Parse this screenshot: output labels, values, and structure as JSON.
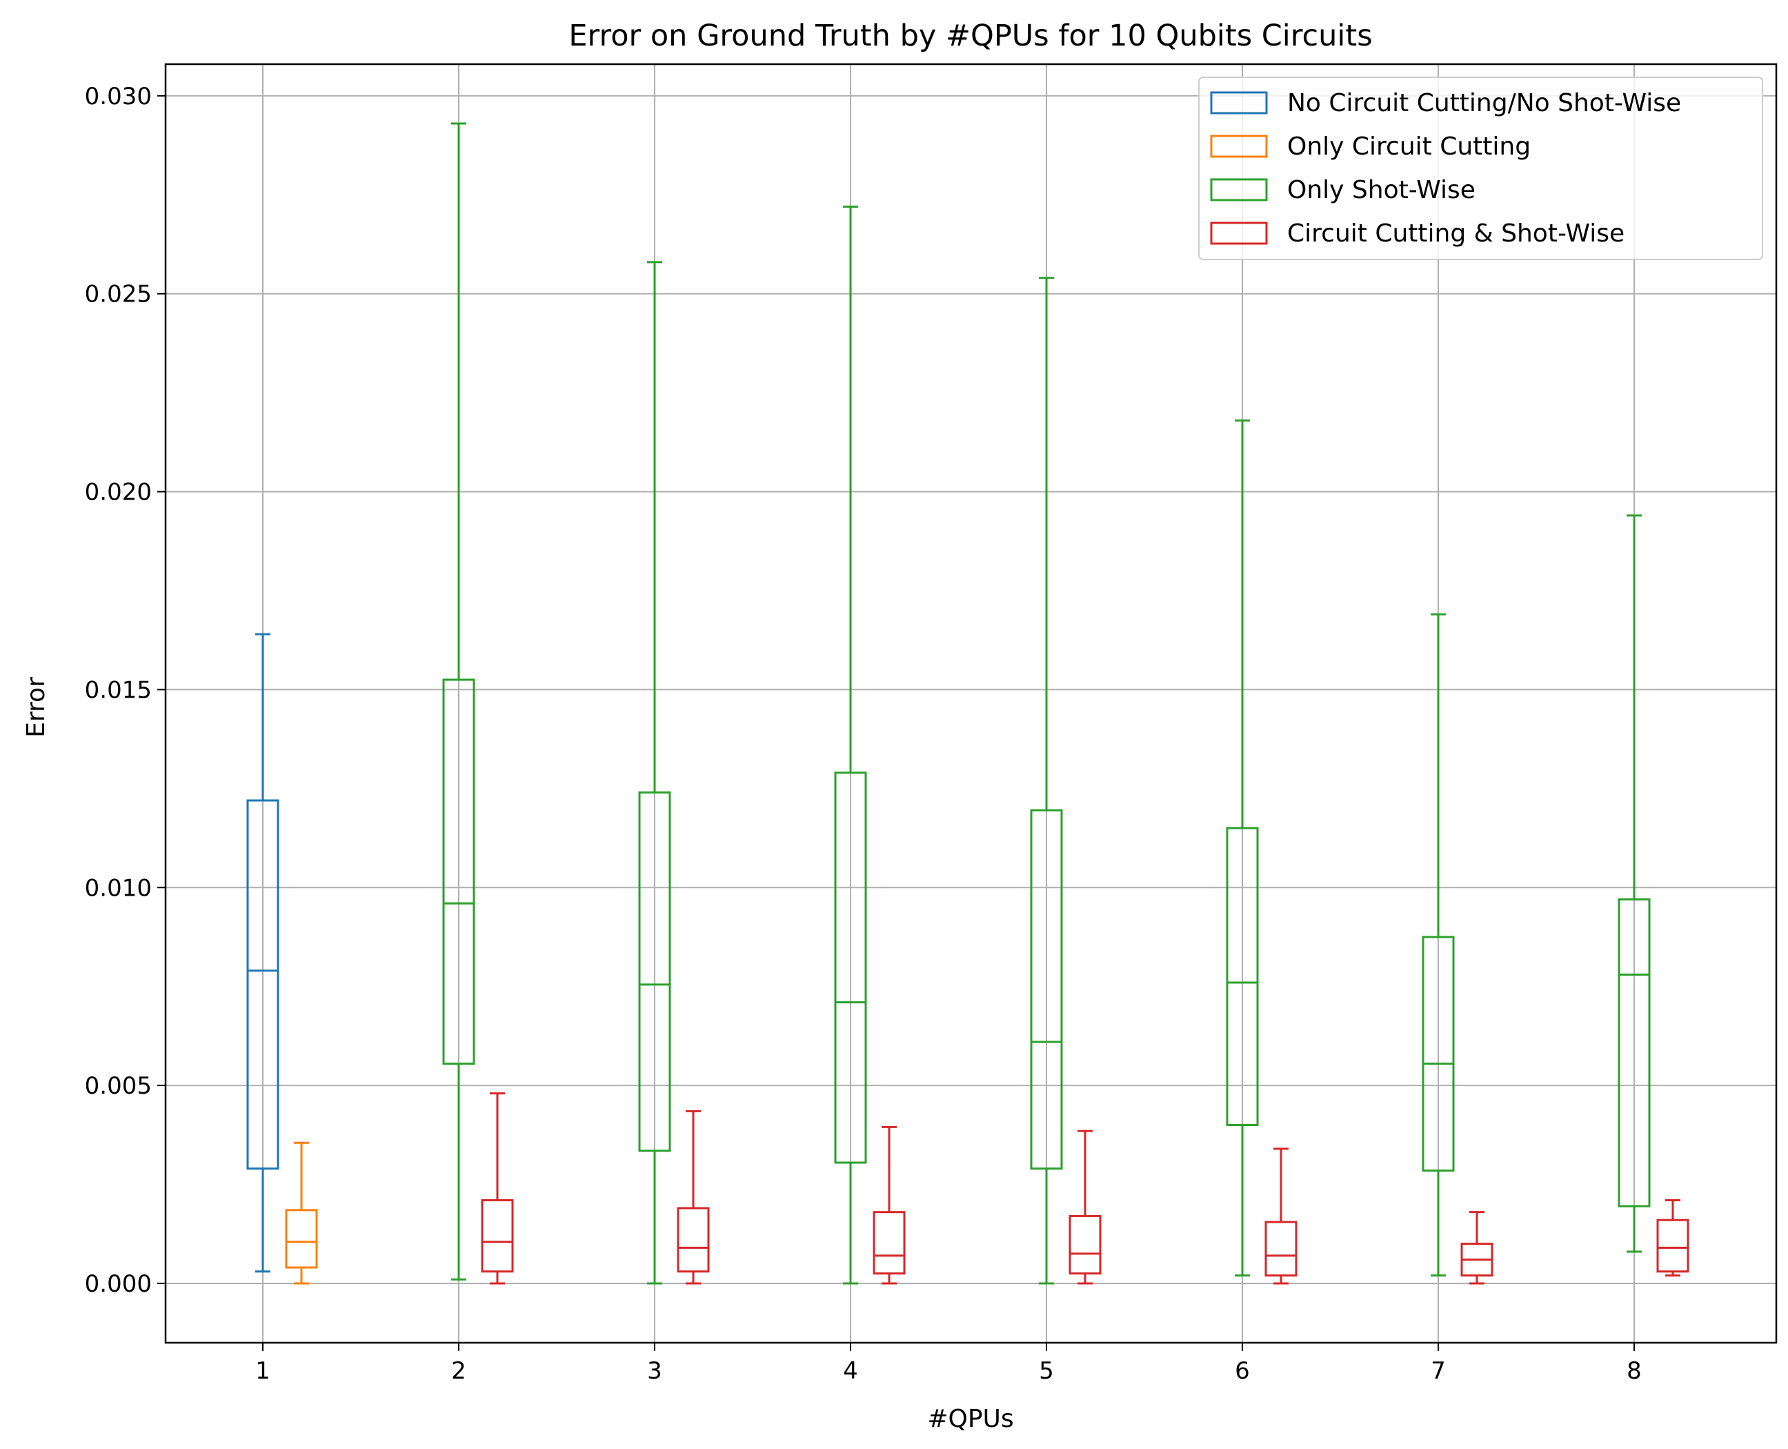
{
  "chart_data": {
    "type": "box",
    "title": "Error on Ground Truth by #QPUs for 10 Qubits Circuits",
    "xlabel": "#QPUs",
    "ylabel": "Error",
    "ylim": [
      -0.0015,
      0.0308
    ],
    "yticks": [
      "0.000",
      "0.005",
      "0.010",
      "0.015",
      "0.020",
      "0.025",
      "0.030"
    ],
    "categories": [
      "1",
      "2",
      "3",
      "4",
      "5",
      "6",
      "7",
      "8"
    ],
    "grid": true,
    "legend_position": "top-right",
    "series": [
      {
        "name": "No Circuit Cutting/No Shot-Wise",
        "color": "#1f77b4",
        "boxes": [
          {
            "category": "1",
            "whislo": 0.0003,
            "q1": 0.0029,
            "median": 0.0079,
            "q3": 0.0122,
            "whishi": 0.0164
          }
        ]
      },
      {
        "name": "Only Circuit Cutting",
        "color": "#ff7f0e",
        "boxes": [
          {
            "category": "1",
            "whislo": 0.0,
            "q1": 0.0004,
            "median": 0.00105,
            "q3": 0.00185,
            "whishi": 0.00355
          }
        ]
      },
      {
        "name": "Only Shot-Wise",
        "color": "#2ca02c",
        "boxes": [
          {
            "category": "2",
            "whislo": 0.0001,
            "q1": 0.00555,
            "median": 0.0096,
            "q3": 0.01525,
            "whishi": 0.0293
          },
          {
            "category": "3",
            "whislo": 0.0,
            "q1": 0.00335,
            "median": 0.00755,
            "q3": 0.0124,
            "whishi": 0.0258
          },
          {
            "category": "4",
            "whislo": 0.0,
            "q1": 0.00305,
            "median": 0.0071,
            "q3": 0.0129,
            "whishi": 0.0272
          },
          {
            "category": "5",
            "whislo": 0.0,
            "q1": 0.0029,
            "median": 0.0061,
            "q3": 0.01195,
            "whishi": 0.0254
          },
          {
            "category": "6",
            "whislo": 0.0002,
            "q1": 0.004,
            "median": 0.0076,
            "q3": 0.0115,
            "whishi": 0.0218
          },
          {
            "category": "7",
            "whislo": 0.0002,
            "q1": 0.00285,
            "median": 0.00555,
            "q3": 0.00875,
            "whishi": 0.0169
          },
          {
            "category": "8",
            "whislo": 0.0008,
            "q1": 0.00195,
            "median": 0.0078,
            "q3": 0.0097,
            "whishi": 0.0194
          }
        ]
      },
      {
        "name": "Circuit Cutting & Shot-Wise",
        "color": "#d62728",
        "boxes": [
          {
            "category": "2",
            "whislo": 0.0,
            "q1": 0.0003,
            "median": 0.00105,
            "q3": 0.0021,
            "whishi": 0.0048
          },
          {
            "category": "3",
            "whislo": 0.0,
            "q1": 0.0003,
            "median": 0.0009,
            "q3": 0.0019,
            "whishi": 0.00435
          },
          {
            "category": "4",
            "whislo": 0.0,
            "q1": 0.00025,
            "median": 0.0007,
            "q3": 0.0018,
            "whishi": 0.00395
          },
          {
            "category": "5",
            "whislo": 0.0,
            "q1": 0.00025,
            "median": 0.00075,
            "q3": 0.0017,
            "whishi": 0.00385
          },
          {
            "category": "6",
            "whislo": 0.0,
            "q1": 0.0002,
            "median": 0.0007,
            "q3": 0.00155,
            "whishi": 0.0034
          },
          {
            "category": "7",
            "whislo": 0.0,
            "q1": 0.0002,
            "median": 0.0006,
            "q3": 0.001,
            "whishi": 0.0018
          },
          {
            "category": "8",
            "whislo": 0.0002,
            "q1": 0.0003,
            "median": 0.0009,
            "q3": 0.0016,
            "whishi": 0.0021
          }
        ]
      }
    ]
  }
}
